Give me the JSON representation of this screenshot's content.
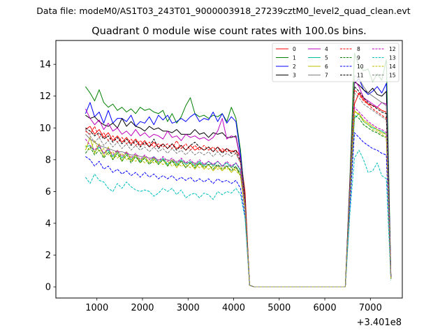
{
  "header": {
    "file_label": "Data file: modeM0/AS1T03_243T01_9000003918_27239cztM0_level2_quad_clean.evt"
  },
  "chart_data": {
    "type": "line",
    "title": "Quadrant 0 module wise count rates with 100.0s bins.",
    "xlabel": "",
    "ylabel": "",
    "x_offset_label": "+3.401e8",
    "xlim": [
      100,
      7700
    ],
    "ylim": [
      -0.7,
      15.5
    ],
    "xticks": [
      1000,
      2000,
      3000,
      4000,
      5000,
      6000,
      7000
    ],
    "yticks": [
      0,
      2,
      4,
      6,
      8,
      10,
      12,
      14
    ],
    "grid": false,
    "legend_position": "top-right",
    "x_left": [
      750,
      850,
      950,
      1050,
      1150,
      1250,
      1350,
      1450,
      1550,
      1650,
      1750,
      1850,
      1950,
      2050,
      2150,
      2250,
      2350,
      2450,
      2550,
      2650,
      2750,
      2850,
      2950,
      3050,
      3150,
      3250,
      3350,
      3450,
      3550,
      3650,
      3750,
      3850,
      3950,
      4050,
      4150,
      4250,
      4350
    ],
    "x_gap": [
      4450,
      4550,
      4650,
      4750,
      4850,
      4950,
      5050,
      5150,
      5250,
      5350,
      5450,
      5550,
      5650,
      5750,
      5850,
      5950,
      6050,
      6150,
      6250,
      6350,
      6450
    ],
    "x_right": [
      6550,
      6650,
      6750,
      6850,
      6950,
      7050,
      7150,
      7250,
      7350,
      7450
    ],
    "series": [
      {
        "name": "0",
        "color": "#ff0000",
        "dash": "solid",
        "left": [
          9.9,
          10.1,
          9.6,
          9.9,
          9.4,
          9.7,
          9.2,
          9.5,
          9.1,
          9.4,
          9.0,
          9.3,
          8.9,
          9.2,
          8.8,
          9.1,
          8.8,
          9.0,
          8.7,
          9.0,
          8.7,
          8.9,
          8.6,
          8.9,
          8.6,
          8.8,
          8.6,
          8.8,
          8.5,
          8.8,
          8.5,
          8.7,
          8.5,
          8.6,
          8.2,
          6.0,
          0.1
        ],
        "right": [
          6.0,
          11.5,
          12.2,
          11.8,
          11.5,
          11.4,
          11.3,
          11.1,
          11.0,
          0.6
        ]
      },
      {
        "name": "1",
        "color": "#008000",
        "dash": "solid",
        "left": [
          12.6,
          12.2,
          11.7,
          12.4,
          11.6,
          11.3,
          11.5,
          11.1,
          11.3,
          11.0,
          11.2,
          10.9,
          11.3,
          11.1,
          11.2,
          11.0,
          10.9,
          11.1,
          10.4,
          10.9,
          10.3,
          10.7,
          11.4,
          11.9,
          10.9,
          10.7,
          10.8,
          10.6,
          10.8,
          10.7,
          10.9,
          10.4,
          11.3,
          10.6,
          8.6,
          5.5,
          0.1
        ],
        "right": [
          6.8,
          14.7,
          13.9,
          13.6,
          13.7,
          12.9,
          13.4,
          13.0,
          14.3,
          0.7
        ]
      },
      {
        "name": "2",
        "color": "#0000ff",
        "dash": "solid",
        "left": [
          10.9,
          11.6,
          10.7,
          11.0,
          10.3,
          11.1,
          10.3,
          10.6,
          10.6,
          10.4,
          10.8,
          10.1,
          10.4,
          10.3,
          10.7,
          10.2,
          10.8,
          10.5,
          10.8,
          10.3,
          10.4,
          10.6,
          10.4,
          10.7,
          10.9,
          10.4,
          10.6,
          10.5,
          11.0,
          10.4,
          10.9,
          10.3,
          10.7,
          10.4,
          8.3,
          5.4,
          0.1
        ],
        "right": [
          6.3,
          12.8,
          13.1,
          12.4,
          12.1,
          12.3,
          12.6,
          12.2,
          12.8,
          0.6
        ]
      },
      {
        "name": "3",
        "color": "#000000",
        "dash": "solid",
        "left": [
          10.8,
          10.6,
          10.7,
          10.4,
          10.2,
          10.1,
          10.3,
          10.0,
          10.6,
          10.1,
          10.4,
          10.1,
          10.0,
          9.8,
          10.1,
          9.9,
          10.0,
          9.8,
          9.8,
          9.7,
          9.9,
          9.6,
          9.6,
          9.6,
          9.9,
          9.6,
          9.7,
          9.4,
          9.7,
          9.6,
          9.7,
          9.4,
          9.4,
          9.5,
          8.0,
          5.4,
          0.1
        ],
        "right": [
          6.6,
          12.9,
          12.7,
          12.4,
          12.2,
          12.5,
          12.1,
          12.0,
          12.3,
          0.6
        ]
      },
      {
        "name": "4",
        "color": "#bf00bf",
        "dash": "solid",
        "left": [
          11.2,
          10.6,
          10.2,
          10.5,
          9.9,
          10.3,
          9.8,
          10.0,
          9.6,
          9.8,
          9.5,
          9.9,
          9.5,
          9.7,
          9.4,
          9.6,
          9.5,
          9.3,
          9.8,
          9.4,
          9.5,
          9.2,
          9.6,
          9.4,
          9.5,
          9.3,
          9.4,
          9.2,
          9.4,
          9.8,
          10.6,
          9.3,
          9.5,
          9.4,
          8.0,
          5.3,
          0.1
        ],
        "right": [
          6.4,
          13.0,
          12.6,
          11.9,
          11.7,
          11.5,
          11.3,
          11.6,
          11.5,
          0.6
        ]
      },
      {
        "name": "5",
        "color": "#00bfa0",
        "dash": "solid",
        "left": [
          8.8,
          8.9,
          8.5,
          8.8,
          8.4,
          8.6,
          8.2,
          8.5,
          8.1,
          8.4,
          8.0,
          8.3,
          7.9,
          8.2,
          7.8,
          8.2,
          7.8,
          8.1,
          7.7,
          8.0,
          7.7,
          8.0,
          7.7,
          7.9,
          7.6,
          7.9,
          7.6,
          7.9,
          7.6,
          7.9,
          7.6,
          7.8,
          7.5,
          7.8,
          7.3,
          5.1,
          0.1
        ],
        "right": [
          5.5,
          10.6,
          10.9,
          10.4,
          10.2,
          10.0,
          9.9,
          9.8,
          9.6,
          0.5
        ]
      },
      {
        "name": "6",
        "color": "#bfbf00",
        "dash": "solid",
        "left": [
          8.6,
          9.4,
          8.4,
          9.0,
          8.2,
          8.8,
          8.0,
          8.6,
          7.9,
          8.5,
          7.9,
          8.3,
          7.8,
          8.2,
          7.8,
          8.1,
          7.7,
          8.0,
          7.6,
          8.0,
          7.5,
          7.9,
          7.5,
          7.8,
          7.4,
          7.8,
          7.4,
          7.7,
          7.3,
          7.6,
          7.3,
          7.6,
          7.2,
          7.5,
          7.0,
          4.9,
          0.1
        ],
        "right": [
          5.8,
          11.0,
          10.9,
          10.5,
          10.3,
          10.1,
          9.9,
          9.7,
          9.6,
          0.5
        ]
      },
      {
        "name": "7",
        "color": "#808080",
        "dash": "solid",
        "left": [
          9.6,
          9.3,
          9.1,
          8.9,
          8.8,
          8.7,
          8.6,
          8.5,
          8.5,
          8.4,
          8.3,
          8.3,
          8.2,
          8.2,
          8.1,
          8.1,
          8.0,
          8.0,
          8.0,
          7.9,
          7.9,
          7.9,
          7.8,
          7.8,
          7.8,
          7.7,
          7.7,
          7.7,
          7.7,
          7.6,
          7.6,
          7.6,
          7.6,
          7.5,
          7.2,
          5.0,
          0.1
        ],
        "right": [
          5.9,
          13.3,
          13.1,
          12.6,
          12.2,
          12.0,
          11.8,
          11.6,
          11.4,
          0.6
        ]
      },
      {
        "name": "8",
        "color": "#ff0000",
        "dash": "dashed",
        "left": [
          9.8,
          9.6,
          10.1,
          9.4,
          9.7,
          9.2,
          9.5,
          9.1,
          9.4,
          9.0,
          9.3,
          8.9,
          9.2,
          8.9,
          9.1,
          8.8,
          9.0,
          8.8,
          9.0,
          8.7,
          9.2,
          8.7,
          9.0,
          8.6,
          8.9,
          8.6,
          8.9,
          8.6,
          8.8,
          8.5,
          8.7,
          8.5,
          8.6,
          8.4,
          7.8,
          5.2,
          0.1
        ],
        "right": [
          5.9,
          12.4,
          12.1,
          11.7,
          11.5,
          11.2,
          11.0,
          10.8,
          10.6,
          0.6
        ]
      },
      {
        "name": "9",
        "color": "#008000",
        "dash": "dashed",
        "left": [
          8.4,
          8.8,
          8.3,
          8.6,
          8.1,
          8.5,
          8.0,
          8.4,
          7.9,
          8.3,
          7.8,
          8.2,
          7.8,
          8.1,
          7.7,
          8.0,
          7.7,
          8.0,
          7.6,
          7.9,
          7.6,
          7.9,
          7.5,
          7.8,
          7.5,
          7.8,
          7.5,
          7.7,
          7.4,
          7.7,
          7.4,
          7.6,
          7.3,
          7.6,
          7.0,
          4.8,
          0.1
        ],
        "right": [
          5.6,
          10.8,
          10.6,
          10.2,
          10.0,
          9.8,
          9.7,
          9.5,
          9.4,
          0.5
        ]
      },
      {
        "name": "10",
        "color": "#0000ff",
        "dash": "dashed",
        "left": [
          8.2,
          8.0,
          7.6,
          7.9,
          7.4,
          7.6,
          7.2,
          7.4,
          7.1,
          7.3,
          7.0,
          7.2,
          6.9,
          7.2,
          6.9,
          7.1,
          6.8,
          7.0,
          6.8,
          7.0,
          6.7,
          6.9,
          6.7,
          6.9,
          6.6,
          6.8,
          6.6,
          6.8,
          6.5,
          6.8,
          6.6,
          6.7,
          6.5,
          6.7,
          6.2,
          4.5,
          0.1
        ],
        "right": [
          5.0,
          9.7,
          9.4,
          9.1,
          8.9,
          8.7,
          8.6,
          8.4,
          8.3,
          0.5
        ]
      },
      {
        "name": "11",
        "color": "#000000",
        "dash": "dashed",
        "left": [
          10.0,
          9.8,
          9.5,
          9.7,
          9.3,
          9.5,
          9.1,
          9.4,
          9.0,
          9.3,
          8.9,
          9.2,
          8.8,
          9.1,
          8.8,
          9.3,
          8.7,
          9.0,
          8.7,
          9.0,
          8.6,
          8.9,
          8.6,
          8.9,
          9.1,
          8.8,
          8.6,
          8.8,
          8.5,
          8.8,
          8.4,
          8.7,
          8.4,
          8.6,
          7.9,
          5.3,
          0.1
        ],
        "right": [
          6.1,
          12.6,
          12.3,
          11.9,
          11.6,
          11.4,
          11.2,
          11.0,
          10.9,
          0.6
        ]
      },
      {
        "name": "12",
        "color": "#bf00bf",
        "dash": "dashed",
        "left": [
          9.3,
          8.9,
          8.6,
          8.9,
          8.4,
          8.7,
          8.3,
          8.6,
          8.2,
          8.5,
          8.1,
          8.4,
          8.0,
          8.3,
          8.0,
          8.2,
          7.9,
          8.2,
          7.9,
          8.1,
          7.8,
          8.1,
          7.8,
          8.0,
          7.7,
          8.0,
          7.7,
          7.9,
          7.7,
          7.9,
          7.6,
          7.9,
          7.6,
          7.8,
          7.4,
          5.0,
          0.1
        ],
        "right": [
          5.8,
          11.3,
          11.0,
          10.7,
          10.4,
          10.2,
          10.0,
          9.9,
          9.7,
          0.5
        ]
      },
      {
        "name": "13",
        "color": "#00bfbf",
        "dash": "dashed",
        "left": [
          6.9,
          6.5,
          7.1,
          6.7,
          6.6,
          6.2,
          6.0,
          6.5,
          6.2,
          6.6,
          6.3,
          6.1,
          6.0,
          6.1,
          6.0,
          5.7,
          5.9,
          6.2,
          6.0,
          6.2,
          5.8,
          6.1,
          5.6,
          5.8,
          5.9,
          5.6,
          5.9,
          5.8,
          5.5,
          6.0,
          5.8,
          6.0,
          5.9,
          6.2,
          5.8,
          4.3,
          0.1
        ],
        "right": [
          4.6,
          8.1,
          8.6,
          8.0,
          7.2,
          7.3,
          7.8,
          7.0,
          6.8,
          0.4
        ]
      },
      {
        "name": "14",
        "color": "#bfbf00",
        "dash": "dashed",
        "left": [
          8.9,
          8.6,
          9.2,
          8.5,
          8.7,
          8.3,
          8.5,
          8.1,
          8.4,
          8.0,
          8.2,
          7.9,
          8.1,
          7.8,
          8.0,
          7.8,
          7.9,
          7.7,
          7.9,
          7.6,
          7.8,
          7.6,
          7.7,
          7.5,
          7.7,
          7.5,
          7.6,
          7.4,
          7.6,
          7.4,
          7.5,
          7.4,
          7.5,
          7.3,
          7.0,
          4.9,
          0.1
        ],
        "right": [
          5.7,
          11.1,
          10.8,
          10.4,
          10.2,
          9.9,
          9.8,
          9.6,
          9.4,
          0.5
        ]
      },
      {
        "name": "15",
        "color": "#808080",
        "dash": "dashed",
        "left": [
          9.9,
          9.5,
          9.1,
          9.4,
          8.9,
          9.2,
          8.8,
          9.1,
          8.7,
          9.0,
          8.6,
          8.9,
          8.6,
          8.8,
          8.5,
          8.8,
          8.5,
          8.7,
          8.4,
          8.7,
          8.4,
          8.6,
          8.3,
          8.6,
          8.3,
          8.5,
          8.3,
          8.5,
          8.2,
          8.5,
          8.2,
          8.4,
          8.2,
          8.4,
          7.8,
          5.2,
          0.1
        ],
        "right": [
          6.0,
          12.2,
          11.9,
          11.5,
          11.3,
          11.1,
          10.9,
          10.7,
          10.5,
          0.6
        ]
      }
    ]
  }
}
